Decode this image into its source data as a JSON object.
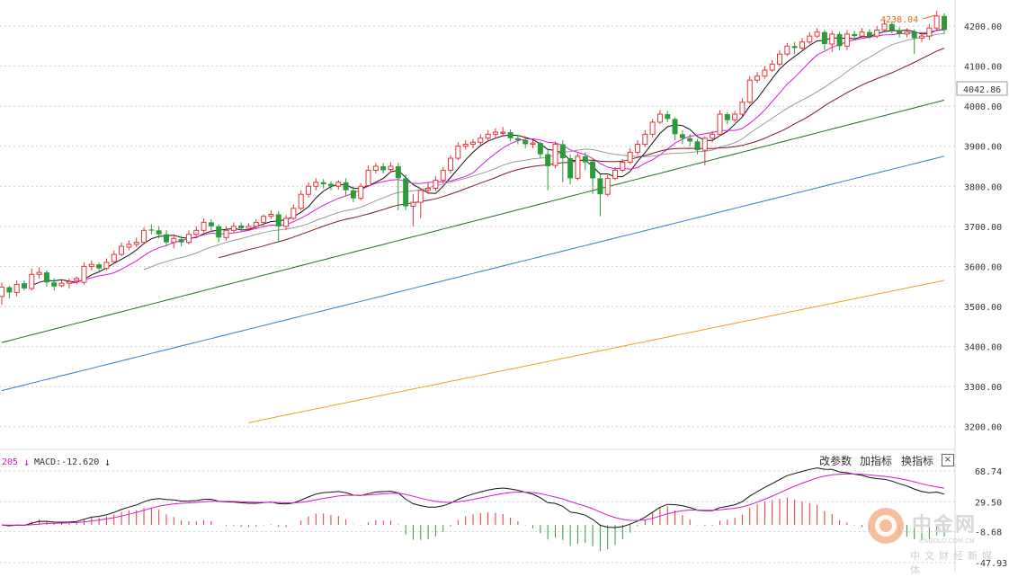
{
  "chart_data": {
    "type": "candlestick",
    "ylim": [
      3150,
      4265
    ],
    "y_ticks": [
      "4200.00",
      "4100.00",
      "4000.00",
      "3900.00",
      "3800.00",
      "3700.00",
      "3600.00",
      "3500.00",
      "3400.00",
      "3300.00",
      "3200.00"
    ],
    "current_price_label": "4042.86",
    "high_annotation": "4238.04",
    "colors": {
      "up": "#e8353a",
      "down": "#2e9b3b",
      "ma5": "#111111",
      "ma10": "#e01ad0",
      "ma20": "#999999",
      "ma30": "#7a1a22",
      "ma60": "#1d6e1d",
      "ma120": "#2b7dc8",
      "ma250": "#f0a020"
    },
    "candles": [
      [
        3525,
        3548,
        3560,
        3505
      ],
      [
        3548,
        3535,
        3552,
        3520
      ],
      [
        3535,
        3555,
        3565,
        3525
      ],
      [
        3558,
        3545,
        3565,
        3540
      ],
      [
        3545,
        3580,
        3595,
        3540
      ],
      [
        3580,
        3585,
        3598,
        3570
      ],
      [
        3585,
        3560,
        3590,
        3550
      ],
      [
        3560,
        3550,
        3570,
        3540
      ],
      [
        3552,
        3558,
        3565,
        3548
      ],
      [
        3558,
        3562,
        3570,
        3545
      ],
      [
        3565,
        3570,
        3575,
        3555
      ],
      [
        3560,
        3600,
        3610,
        3555
      ],
      [
        3600,
        3605,
        3615,
        3590
      ],
      [
        3605,
        3595,
        3610,
        3585
      ],
      [
        3595,
        3610,
        3620,
        3590
      ],
      [
        3612,
        3630,
        3640,
        3608
      ],
      [
        3630,
        3650,
        3660,
        3625
      ],
      [
        3648,
        3655,
        3665,
        3640
      ],
      [
        3655,
        3660,
        3672,
        3648
      ],
      [
        3660,
        3690,
        3698,
        3655
      ],
      [
        3692,
        3690,
        3705,
        3680
      ],
      [
        3690,
        3680,
        3700,
        3670
      ],
      [
        3680,
        3660,
        3690,
        3650
      ],
      [
        3660,
        3670,
        3680,
        3645
      ],
      [
        3668,
        3660,
        3676,
        3650
      ],
      [
        3660,
        3680,
        3690,
        3655
      ],
      [
        3680,
        3690,
        3700,
        3675
      ],
      [
        3690,
        3710,
        3720,
        3685
      ],
      [
        3710,
        3700,
        3718,
        3690
      ],
      [
        3700,
        3672,
        3705,
        3660
      ],
      [
        3672,
        3690,
        3700,
        3665
      ],
      [
        3690,
        3700,
        3710,
        3683
      ],
      [
        3702,
        3695,
        3710,
        3688
      ],
      [
        3695,
        3700,
        3708,
        3688
      ],
      [
        3700,
        3710,
        3718,
        3692
      ],
      [
        3710,
        3725,
        3730,
        3700
      ],
      [
        3725,
        3730,
        3740,
        3718
      ],
      [
        3730,
        3700,
        3738,
        3660
      ],
      [
        3700,
        3720,
        3728,
        3690
      ],
      [
        3720,
        3745,
        3755,
        3715
      ],
      [
        3745,
        3780,
        3790,
        3740
      ],
      [
        3780,
        3800,
        3810,
        3772
      ],
      [
        3800,
        3810,
        3820,
        3790
      ],
      [
        3810,
        3805,
        3818,
        3795
      ],
      [
        3806,
        3800,
        3812,
        3790
      ],
      [
        3800,
        3810,
        3815,
        3792
      ],
      [
        3810,
        3790,
        3820,
        3775
      ],
      [
        3790,
        3770,
        3800,
        3760
      ],
      [
        3770,
        3800,
        3808,
        3765
      ],
      [
        3802,
        3840,
        3852,
        3798
      ],
      [
        3840,
        3850,
        3858,
        3832
      ],
      [
        3850,
        3840,
        3858,
        3832
      ],
      [
        3842,
        3850,
        3860,
        3835
      ],
      [
        3850,
        3820,
        3858,
        3740
      ],
      [
        3820,
        3750,
        3830,
        3740
      ],
      [
        3750,
        3760,
        3780,
        3700
      ],
      [
        3760,
        3790,
        3795,
        3720
      ],
      [
        3790,
        3795,
        3810,
        3780
      ],
      [
        3795,
        3815,
        3825,
        3788
      ],
      [
        3815,
        3840,
        3848,
        3808
      ],
      [
        3840,
        3870,
        3878,
        3832
      ],
      [
        3870,
        3900,
        3910,
        3865
      ],
      [
        3900,
        3905,
        3915,
        3892
      ],
      [
        3905,
        3910,
        3918,
        3895
      ],
      [
        3910,
        3920,
        3930,
        3900
      ],
      [
        3920,
        3930,
        3940,
        3912
      ],
      [
        3930,
        3935,
        3945,
        3920
      ],
      [
        3935,
        3935,
        3948,
        3925
      ],
      [
        3935,
        3920,
        3942,
        3912
      ],
      [
        3920,
        3915,
        3928,
        3905
      ],
      [
        3915,
        3905,
        3922,
        3895
      ],
      [
        3905,
        3908,
        3915,
        3895
      ],
      [
        3908,
        3880,
        3912,
        3870
      ],
      [
        3880,
        3850,
        3890,
        3790
      ],
      [
        3852,
        3905,
        3912,
        3845
      ],
      [
        3905,
        3870,
        3915,
        3810
      ],
      [
        3870,
        3820,
        3880,
        3805
      ],
      [
        3820,
        3875,
        3882,
        3815
      ],
      [
        3875,
        3860,
        3885,
        3840
      ],
      [
        3862,
        3820,
        3870,
        3780
      ],
      [
        3820,
        3780,
        3830,
        3725
      ],
      [
        3780,
        3820,
        3828,
        3775
      ],
      [
        3820,
        3840,
        3848,
        3815
      ],
      [
        3840,
        3860,
        3868,
        3835
      ],
      [
        3860,
        3885,
        3895,
        3855
      ],
      [
        3885,
        3905,
        3915,
        3878
      ],
      [
        3905,
        3930,
        3940,
        3898
      ],
      [
        3930,
        3960,
        3968,
        3922
      ],
      [
        3960,
        3980,
        3990,
        3955
      ],
      [
        3980,
        3968,
        3988,
        3960
      ],
      [
        3968,
        3930,
        3972,
        3915
      ],
      [
        3930,
        3920,
        3940,
        3905
      ],
      [
        3920,
        3912,
        3930,
        3900
      ],
      [
        3912,
        3890,
        3918,
        3880
      ],
      [
        3890,
        3920,
        3925,
        3852
      ],
      [
        3920,
        3930,
        3938,
        3910
      ],
      [
        3930,
        3980,
        3990,
        3925
      ],
      [
        3980,
        3965,
        3985,
        3955
      ],
      [
        3966,
        3980,
        3988,
        3960
      ],
      [
        3980,
        4010,
        4020,
        3975
      ],
      [
        4010,
        4065,
        4075,
        4005
      ],
      [
        4065,
        4075,
        4085,
        4058
      ],
      [
        4075,
        4090,
        4100,
        4068
      ],
      [
        4090,
        4105,
        4115,
        4085
      ],
      [
        4105,
        4130,
        4140,
        4100
      ],
      [
        4130,
        4150,
        4158,
        4125
      ],
      [
        4150,
        4145,
        4160,
        4130
      ],
      [
        4145,
        4160,
        4170,
        4140
      ],
      [
        4160,
        4175,
        4185,
        4155
      ],
      [
        4175,
        4185,
        4195,
        4170
      ],
      [
        4185,
        4155,
        4190,
        4140
      ],
      [
        4155,
        4180,
        4188,
        4135
      ],
      [
        4180,
        4150,
        4185,
        4140
      ],
      [
        4150,
        4180,
        4190,
        4140
      ],
      [
        4180,
        4175,
        4188,
        4168
      ],
      [
        4175,
        4185,
        4195,
        4170
      ],
      [
        4185,
        4175,
        4192,
        4168
      ],
      [
        4175,
        4190,
        4200,
        4170
      ],
      [
        4190,
        4205,
        4215,
        4185
      ],
      [
        4205,
        4190,
        4212,
        4182
      ],
      [
        4190,
        4180,
        4198,
        4172
      ],
      [
        4180,
        4185,
        4195,
        4172
      ],
      [
        4185,
        4170,
        4192,
        4130
      ],
      [
        4170,
        4175,
        4185,
        4160
      ],
      [
        4175,
        4195,
        4205,
        4165
      ],
      [
        4195,
        4225,
        4238,
        4188
      ],
      [
        4225,
        4190,
        4232,
        4180
      ]
    ]
  },
  "macd": {
    "prev_label": "205",
    "label": "MACD:-12.620",
    "y_ticks": [
      "68.74",
      "29.50",
      "-8.68",
      "-47.93"
    ]
  },
  "toolbar": {
    "modify_params": "改参数",
    "add_indicator": "加指标",
    "switch_indicator": "换指标",
    "close": "×"
  },
  "watermark": {
    "name": "中金网",
    "domain": "CNGOLD.COM.CN",
    "tagline": "中文财经新媒体"
  }
}
